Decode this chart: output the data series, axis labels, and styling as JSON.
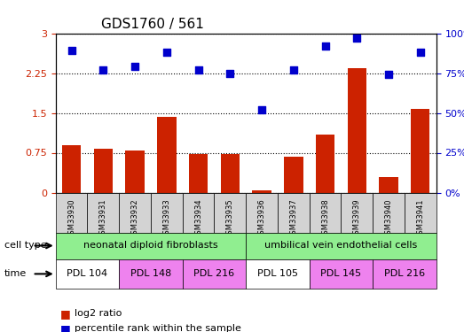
{
  "title": "GDS1760 / 561",
  "samples": [
    "GSM33930",
    "GSM33931",
    "GSM33932",
    "GSM33933",
    "GSM33934",
    "GSM33935",
    "GSM33936",
    "GSM33937",
    "GSM33938",
    "GSM33939",
    "GSM33940",
    "GSM33941"
  ],
  "log2_ratio": [
    0.9,
    0.82,
    0.8,
    1.42,
    0.73,
    0.73,
    0.05,
    0.68,
    1.1,
    2.35,
    0.3,
    1.57
  ],
  "percentile_rank": [
    89,
    77,
    79,
    88,
    77,
    75,
    52,
    77,
    92,
    97,
    74,
    88
  ],
  "bar_color": "#cc2200",
  "dot_color": "#0000cc",
  "ylim_left": [
    0,
    3
  ],
  "ylim_right": [
    0,
    100
  ],
  "yticks_left": [
    0,
    0.75,
    1.5,
    2.25,
    3
  ],
  "yticks_right": [
    0,
    25,
    50,
    75,
    100
  ],
  "ytick_labels_left": [
    "0",
    "0.75",
    "1.5",
    "2.25",
    "3"
  ],
  "ytick_labels_right": [
    "0%",
    "25%",
    "50%",
    "75%",
    "100%"
  ],
  "cell_type_groups": [
    {
      "label": "neonatal diploid fibroblasts",
      "start": 0,
      "end": 6,
      "color": "#90ee90"
    },
    {
      "label": "umbilical vein endothelial cells",
      "start": 6,
      "end": 12,
      "color": "#90ee90"
    }
  ],
  "time_groups": [
    {
      "label": "PDL 104",
      "start": 0,
      "end": 2,
      "color": "#ffffff"
    },
    {
      "label": "PDL 148",
      "start": 2,
      "end": 4,
      "color": "#ee82ee"
    },
    {
      "label": "PDL 216",
      "start": 4,
      "end": 6,
      "color": "#ee82ee"
    },
    {
      "label": "PDL 105",
      "start": 6,
      "end": 8,
      "color": "#ffffff"
    },
    {
      "label": "PDL 145",
      "start": 8,
      "end": 10,
      "color": "#ee82ee"
    },
    {
      "label": "PDL 216",
      "start": 10,
      "end": 12,
      "color": "#ee82ee"
    }
  ],
  "legend_items": [
    {
      "label": "log2 ratio",
      "color": "#cc2200"
    },
    {
      "label": "percentile rank within the sample",
      "color": "#0000cc"
    }
  ],
  "cell_type_label": "cell type",
  "time_label": "time",
  "grid_dotted": true
}
